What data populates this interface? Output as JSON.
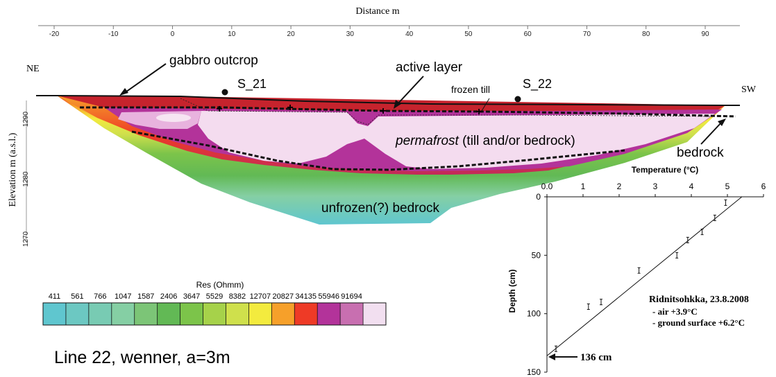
{
  "section": {
    "x_title": "Distance m",
    "x_ticks": [
      -20,
      -10,
      0,
      10,
      20,
      30,
      40,
      50,
      60,
      70,
      80,
      90
    ],
    "y_title": "Elevation m (a.s.l.)",
    "y_ticks": [
      1290,
      1280,
      1270
    ],
    "labels": {
      "ne": "NE",
      "sw": "SW",
      "gabbro": "gabbro outcrop",
      "active": "active layer",
      "frozen_till": "frozen till",
      "s21": "S_21",
      "s22": "S_22",
      "perma_italic": "permafrost",
      "perma_rest": " (till and/or bedrock)",
      "bedrock": "bedrock",
      "unfrozen": "unfrozen(?) bedrock"
    },
    "profile": "Line 22, wenner, a=3m"
  },
  "colorbar": {
    "title": "Res (Ohmm)",
    "values": [
      "411",
      "561",
      "766",
      "1047",
      "1587",
      "2406",
      "3647",
      "5529",
      "8382",
      "12707",
      "20827",
      "34135",
      "55946",
      "91694"
    ],
    "colors": [
      "#5fc6cf",
      "#6cc8c2",
      "#78cbb3",
      "#85cfa4",
      "#7cc577",
      "#62b955",
      "#7cc44a",
      "#a6d24a",
      "#cfe04c",
      "#f3eb3e",
      "#f6a02a",
      "#ee3a26",
      "#b3339a",
      "#c86fb0",
      "#f2dff0"
    ]
  },
  "chart_data": {
    "type": "scatter",
    "title": "Ridnitsohkka, 23.8.2008",
    "notes": [
      "- air +3.9°C",
      "- ground surface +6.2°C"
    ],
    "xlabel": "Temperature (°C)",
    "ylabel": "Depth (cm)",
    "xlim": [
      0,
      6
    ],
    "ylim": [
      0,
      150
    ],
    "x_ticks": [
      "0",
      "1",
      "2",
      "3",
      "4",
      "5",
      "6"
    ],
    "x_tick_labels": [
      "0.0",
      "1",
      "2",
      "3",
      "4",
      "5",
      "6"
    ],
    "y_ticks": [
      "0",
      "50",
      "100",
      "150"
    ],
    "points": [
      {
        "x": 4.95,
        "y": 5
      },
      {
        "x": 4.65,
        "y": 18
      },
      {
        "x": 4.3,
        "y": 30
      },
      {
        "x": 3.9,
        "y": 37
      },
      {
        "x": 3.6,
        "y": 50
      },
      {
        "x": 2.55,
        "y": 63
      },
      {
        "x": 1.5,
        "y": 90
      },
      {
        "x": 1.15,
        "y": 94
      },
      {
        "x": 0.25,
        "y": 130
      }
    ],
    "fit": [
      {
        "x": 5.4,
        "y": 0
      },
      {
        "x": 0,
        "y": 136
      }
    ],
    "annotation": "136 cm"
  }
}
